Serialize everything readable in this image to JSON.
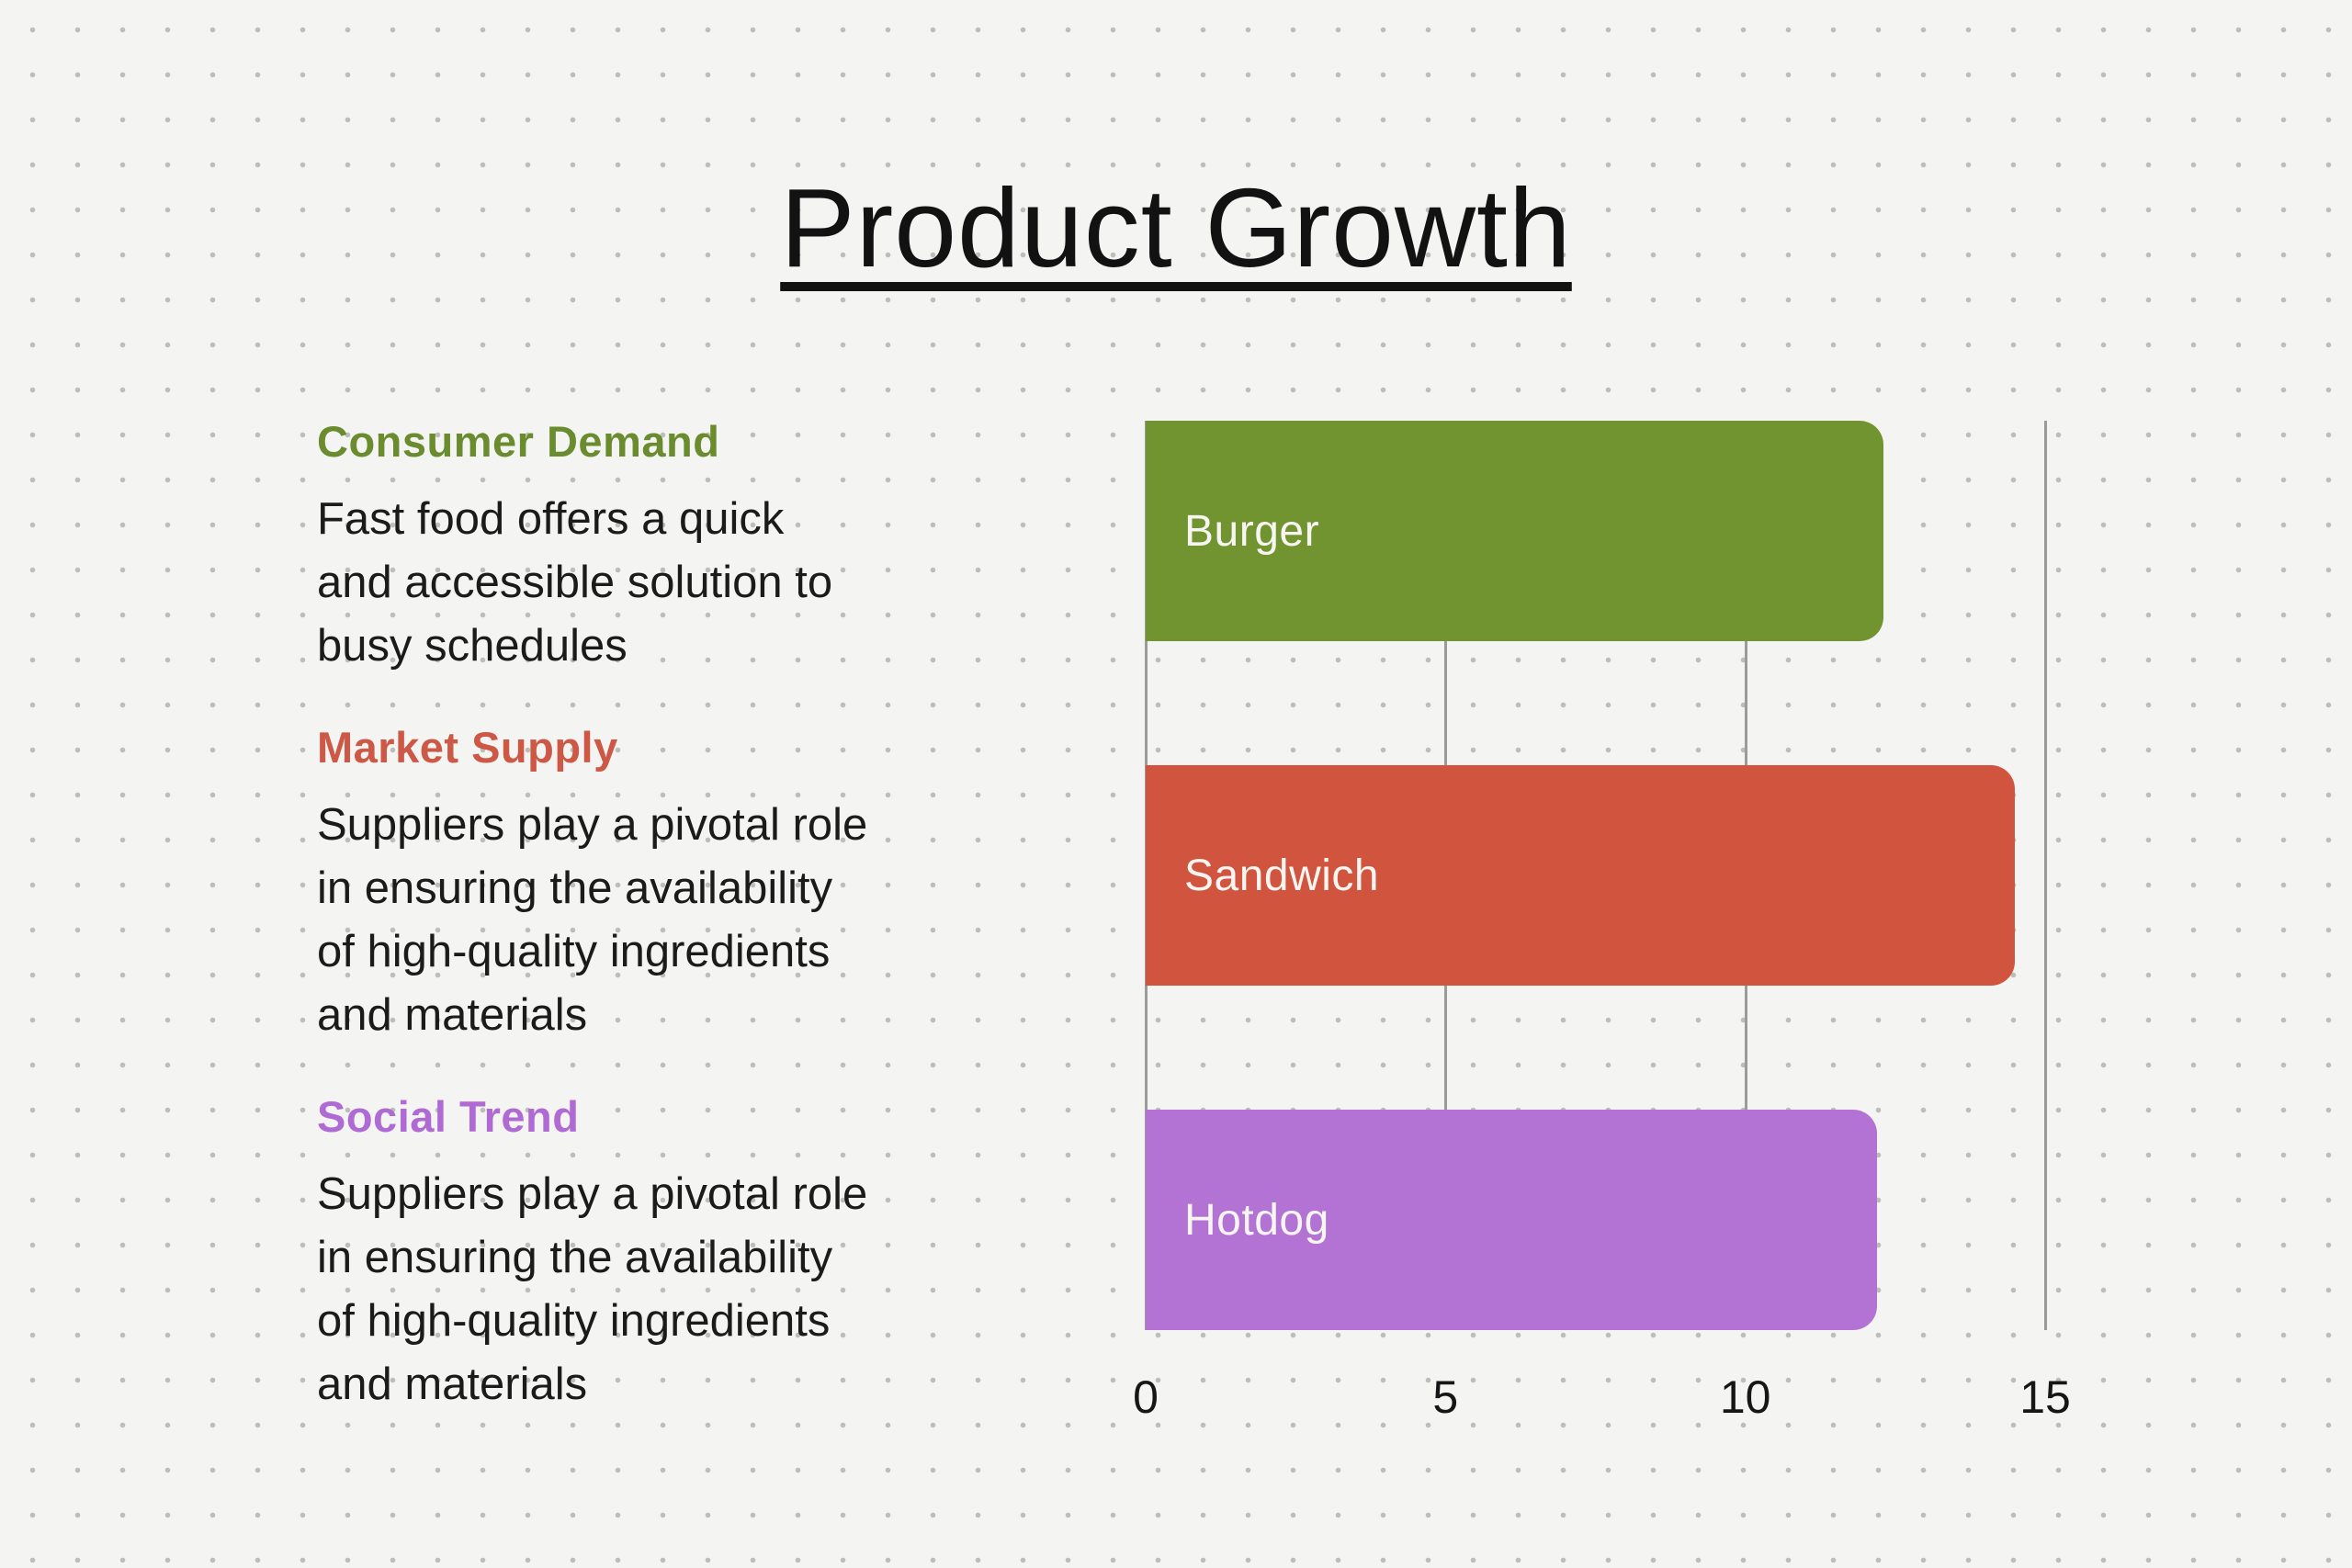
{
  "page": {
    "title": "Product Growth"
  },
  "sections": [
    {
      "heading": "Consumer Demand",
      "heading_color": "#6a8c2f",
      "body": "Fast food offers a quick\nand accessible solution to\nbusy schedules"
    },
    {
      "heading": "Market Supply",
      "heading_color": "#cd5846",
      "body": "Suppliers play a pivotal role\nin ensuring the availability\nof high-quality ingredients\nand materials"
    },
    {
      "heading": "Social Trend",
      "heading_color": "#b06ad4",
      "body": "Suppliers play a pivotal role\nin ensuring the availability\nof high-quality ingredients\nand materials"
    }
  ],
  "chart_data": {
    "type": "bar",
    "orientation": "horizontal",
    "title": "Product Growth",
    "categories": [
      "Burger",
      "Sandwich",
      "Hotdog"
    ],
    "values": [
      12.3,
      14.5,
      12.2
    ],
    "bar_colors": [
      "#719430",
      "#d0543e",
      "#b273d4"
    ],
    "bar_label_color": "#f7f5f1",
    "bar_label_position": "inside-left",
    "xlabel": "",
    "ylabel": "",
    "xlim": [
      0,
      15
    ],
    "xticks": [
      0,
      5,
      10,
      15
    ],
    "grid": "vertical-gridlines-at-ticks",
    "gridline_color": "#9b9b99",
    "legend": "none"
  },
  "style": {
    "background_color": "#f4f4f2",
    "dot_grid_color": "#bdbdba",
    "text_color": "#1b1b19"
  }
}
